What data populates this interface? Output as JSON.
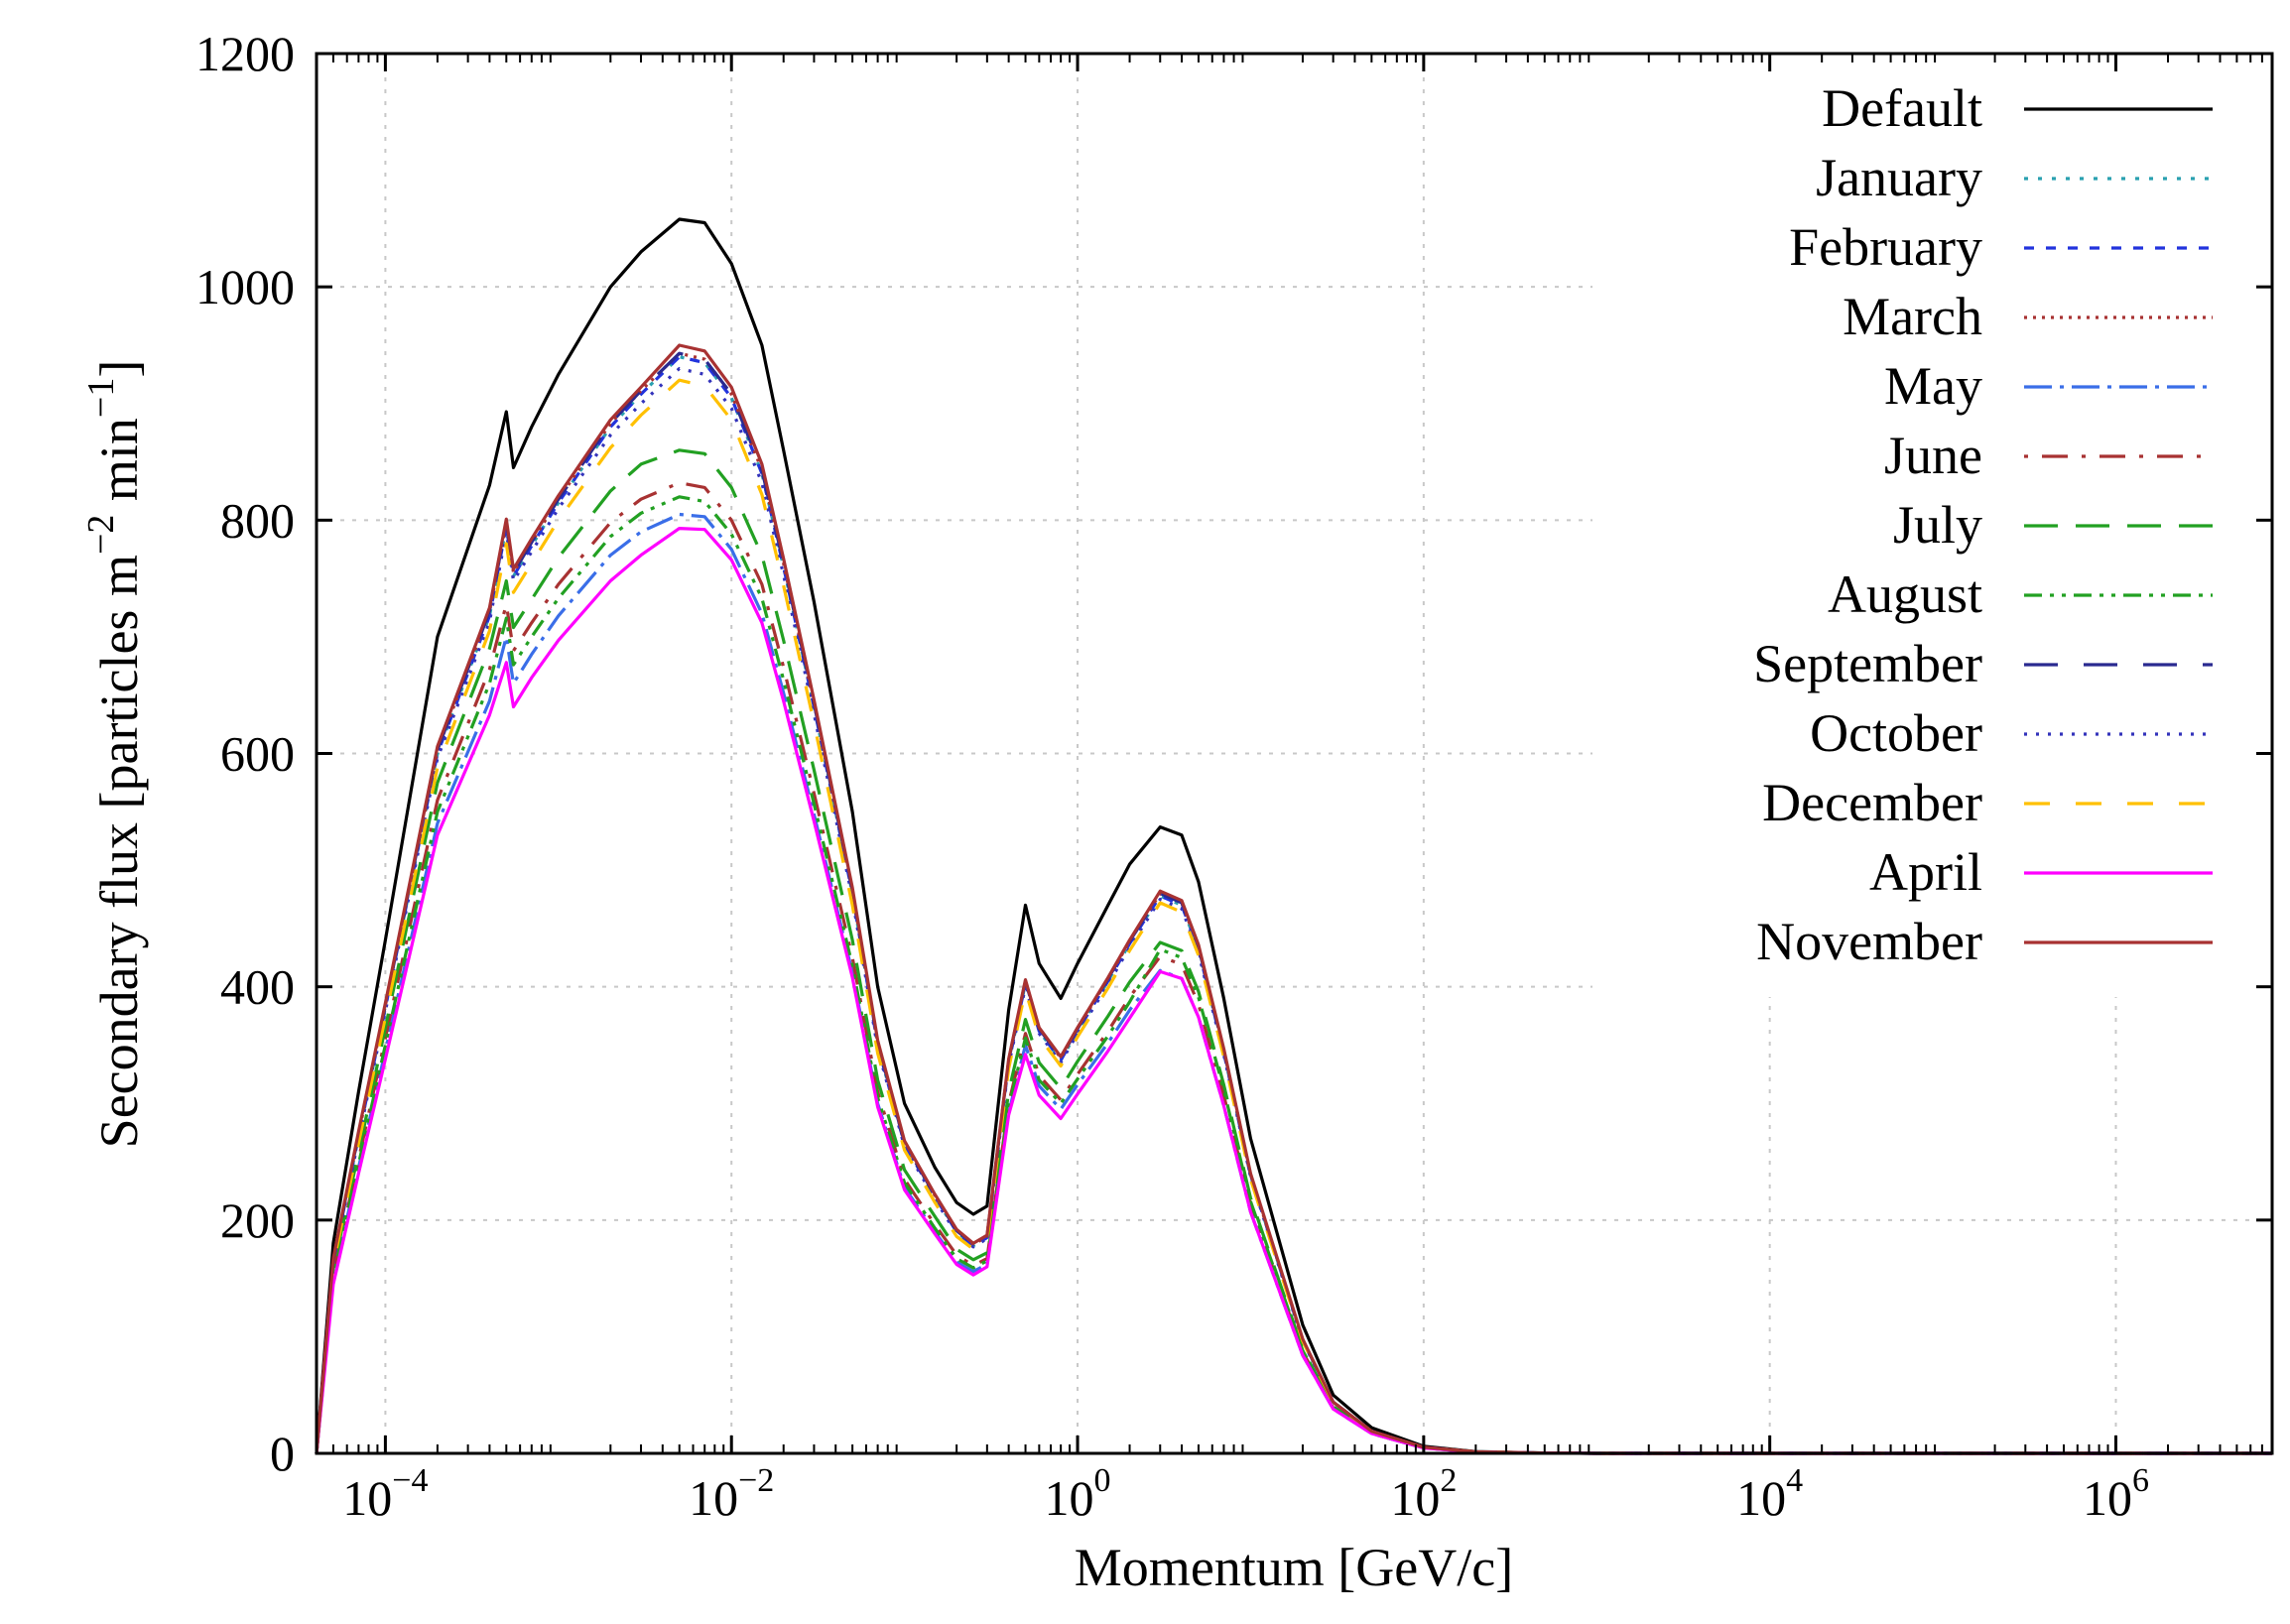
{
  "chart_data": {
    "type": "line",
    "title": "",
    "xlabel": "Momentum [GeV/c]",
    "ylabel": "Secondary flux [particles m^-2 min^-1]",
    "ylabel_parts": [
      "Secondary flux [particles m",
      "−2",
      " min",
      "−1",
      "]"
    ],
    "x_scale": "log",
    "xlim": [
      4e-05,
      8000000.0
    ],
    "ylim": [
      0,
      1200
    ],
    "grid": true,
    "legend_position": "top-right",
    "x_ticks": [
      {
        "value": 0.0001,
        "base": "10",
        "exp": "−4"
      },
      {
        "value": 0.01,
        "base": "10",
        "exp": "−2"
      },
      {
        "value": 1,
        "base": "10",
        "exp": "0"
      },
      {
        "value": 100,
        "base": "10",
        "exp": "2"
      },
      {
        "value": 10000,
        "base": "10",
        "exp": "4"
      },
      {
        "value": 1000000,
        "base": "10",
        "exp": "6"
      }
    ],
    "y_ticks": [
      0,
      200,
      400,
      600,
      800,
      1000,
      1200
    ],
    "x": [
      4e-05,
      5e-05,
      7e-05,
      0.0001,
      0.0002,
      0.0004,
      0.0005,
      0.00055,
      0.0007,
      0.001,
      0.002,
      0.003,
      0.005,
      0.007,
      0.01,
      0.015,
      0.02,
      0.03,
      0.05,
      0.07,
      0.1,
      0.15,
      0.2,
      0.25,
      0.3,
      0.4,
      0.5,
      0.6,
      0.8,
      1,
      1.5,
      2,
      3,
      4,
      5,
      7,
      10,
      20,
      30,
      50,
      100,
      200,
      500,
      1000,
      10000,
      100000,
      1000000,
      8000000
    ],
    "series": [
      {
        "name": "Default",
        "color": "#000000",
        "dash": "",
        "values": [
          0,
          180,
          310,
          440,
          700,
          830,
          893,
          845,
          880,
          925,
          1000,
          1030,
          1058,
          1055,
          1020,
          950,
          860,
          730,
          550,
          400,
          300,
          245,
          215,
          205,
          212,
          380,
          470,
          420,
          390,
          420,
          470,
          505,
          537,
          530,
          490,
          390,
          270,
          110,
          50,
          22,
          6,
          1.5,
          0.3,
          0,
          0,
          0,
          0,
          0
        ]
      },
      {
        "name": "January",
        "color": "#2aa0b0",
        "dash": "4 10",
        "values": [
          0,
          165,
          272,
          382,
          600,
          718,
          795,
          752,
          778,
          815,
          880,
          908,
          940,
          935,
          905,
          840,
          760,
          640,
          480,
          350,
          265,
          220,
          190,
          178,
          185,
          335,
          403,
          362,
          337,
          362,
          405,
          437,
          478,
          470,
          432,
          344,
          238,
          97,
          44,
          19,
          5.3,
          1.3,
          0.26,
          0,
          0,
          0,
          0,
          0
        ]
      },
      {
        "name": "February",
        "color": "#2233dd",
        "dash": "10 12",
        "values": [
          0,
          165,
          272,
          382,
          600,
          718,
          795,
          752,
          778,
          815,
          880,
          908,
          940,
          935,
          905,
          840,
          760,
          640,
          480,
          350,
          265,
          220,
          190,
          178,
          185,
          335,
          403,
          362,
          337,
          362,
          405,
          437,
          478,
          470,
          432,
          344,
          238,
          97,
          44,
          19,
          5.3,
          1.3,
          0.26,
          0,
          0,
          0,
          0,
          0
        ]
      },
      {
        "name": "March",
        "color": "#a83232",
        "dash": "3 6",
        "values": [
          0,
          166,
          274,
          384,
          603,
          722,
          798,
          755,
          781,
          818,
          883,
          911,
          943,
          938,
          908,
          843,
          763,
          643,
          482,
          352,
          266,
          221,
          191,
          179,
          186,
          337,
          405,
          364,
          339,
          364,
          407,
          439,
          480,
          472,
          434,
          346,
          239,
          97,
          44,
          19,
          5.3,
          1.3,
          0.26,
          0,
          0,
          0,
          0,
          0
        ]
      },
      {
        "name": "May",
        "color": "#3a6ee8",
        "dash": "28 8 4 8",
        "values": [
          0,
          150,
          245,
          345,
          540,
          645,
          700,
          660,
          685,
          718,
          770,
          790,
          805,
          803,
          775,
          720,
          652,
          548,
          412,
          300,
          228,
          190,
          164,
          156,
          162,
          292,
          350,
          315,
          295,
          316,
          352,
          380,
          414,
          407,
          374,
          298,
          207,
          84,
          38,
          17,
          4.6,
          1.1,
          0.22,
          0,
          0,
          0,
          0,
          0
        ]
      },
      {
        "name": "June",
        "color": "#a83232",
        "dash": "4 14 26 14",
        "values": [
          0,
          154,
          252,
          356,
          560,
          672,
          728,
          688,
          712,
          745,
          798,
          818,
          832,
          828,
          800,
          745,
          674,
          566,
          425,
          310,
          235,
          196,
          170,
          161,
          167,
          300,
          360,
          324,
          303,
          325,
          362,
          391,
          426,
          419,
          385,
          307,
          213,
          87,
          39,
          17,
          4.7,
          1.2,
          0.23,
          0,
          0,
          0,
          0,
          0
        ]
      },
      {
        "name": "July",
        "color": "#22a022",
        "dash": "34 18",
        "values": [
          0,
          158,
          258,
          365,
          575,
          690,
          748,
          708,
          732,
          768,
          825,
          848,
          860,
          857,
          828,
          770,
          697,
          586,
          440,
          320,
          243,
          203,
          175,
          166,
          172,
          310,
          372,
          335,
          313,
          336,
          375,
          404,
          438,
          431,
          396,
          316,
          219,
          89,
          40,
          18,
          4.9,
          1.2,
          0.24,
          0,
          0,
          0,
          0,
          0
        ]
      },
      {
        "name": "August",
        "color": "#22a022",
        "dash": "18 8 4 8 4 8",
        "values": [
          0,
          152,
          248,
          350,
          550,
          660,
          716,
          676,
          700,
          733,
          786,
          806,
          820,
          816,
          788,
          733,
          663,
          557,
          418,
          305,
          232,
          193,
          167,
          159,
          165,
          297,
          356,
          320,
          300,
          321,
          358,
          387,
          432,
          425,
          391,
          312,
          216,
          88,
          40,
          17,
          4.8,
          1.2,
          0.23,
          0,
          0,
          0,
          0,
          0
        ]
      },
      {
        "name": "September",
        "color": "#2a2a90",
        "dash": "34 26",
        "values": [
          0,
          166,
          274,
          384,
          603,
          722,
          798,
          755,
          781,
          818,
          883,
          911,
          943,
          938,
          908,
          843,
          763,
          643,
          482,
          352,
          266,
          221,
          191,
          179,
          186,
          337,
          405,
          364,
          339,
          364,
          407,
          439,
          480,
          472,
          434,
          346,
          239,
          97,
          44,
          19,
          5.3,
          1.3,
          0.26,
          0,
          0,
          0,
          0,
          0
        ]
      },
      {
        "name": "October",
        "color": "#3333bb",
        "dash": "3 9",
        "values": [
          0,
          164,
          270,
          379,
          596,
          713,
          790,
          748,
          773,
          810,
          873,
          900,
          930,
          925,
          896,
          832,
          753,
          634,
          476,
          347,
          263,
          218,
          188,
          177,
          184,
          333,
          400,
          360,
          335,
          360,
          402,
          434,
          475,
          467,
          429,
          342,
          237,
          96,
          44,
          19,
          5.2,
          1.3,
          0.26,
          0,
          0,
          0,
          0,
          0
        ]
      },
      {
        "name": "December",
        "color": "#ffc000",
        "dash": "26 26",
        "values": [
          0,
          162,
          266,
          374,
          588,
          705,
          780,
          738,
          763,
          800,
          862,
          890,
          920,
          915,
          886,
          822,
          744,
          626,
          470,
          343,
          260,
          215,
          186,
          175,
          182,
          330,
          397,
          357,
          332,
          357,
          399,
          431,
          472,
          464,
          427,
          340,
          235,
          96,
          43,
          19,
          5.2,
          1.3,
          0.26,
          0,
          0,
          0,
          0,
          0
        ]
      },
      {
        "name": "April",
        "color": "#ff00ff",
        "dash": "",
        "values": [
          0,
          145,
          240,
          338,
          530,
          633,
          678,
          640,
          665,
          697,
          748,
          770,
          793,
          792,
          766,
          712,
          645,
          542,
          408,
          297,
          226,
          188,
          162,
          153,
          160,
          290,
          342,
          307,
          287,
          308,
          345,
          373,
          413,
          407,
          374,
          298,
          207,
          84,
          38,
          17,
          4.6,
          1.1,
          0.22,
          0,
          0,
          0,
          0,
          0
        ]
      },
      {
        "name": "November",
        "color": "#a83232",
        "dash": "",
        "values": [
          0,
          167,
          276,
          386,
          606,
          725,
          801,
          758,
          784,
          821,
          886,
          914,
          950,
          945,
          914,
          848,
          767,
          646,
          485,
          354,
          268,
          222,
          192,
          180,
          187,
          338,
          406,
          365,
          340,
          365,
          408,
          440,
          482,
          474,
          436,
          347,
          240,
          98,
          44,
          19,
          5.3,
          1.3,
          0.26,
          0,
          0,
          0,
          0,
          0
        ]
      }
    ]
  }
}
